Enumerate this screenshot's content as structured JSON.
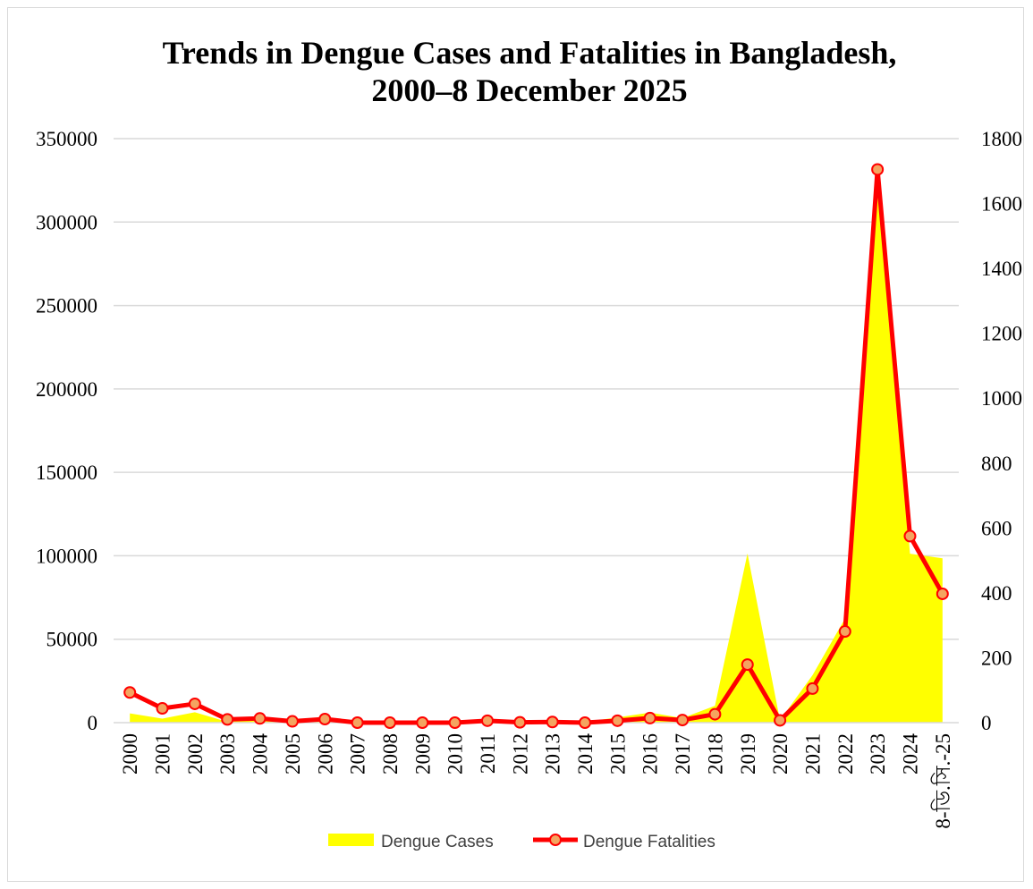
{
  "chart_data": {
    "type": "area",
    "title": [
      "Trends in Dengue Cases and Fatalities in Bangladesh,",
      "2000–8 December 2025"
    ],
    "categories": [
      "2000",
      "2001",
      "2002",
      "2003",
      "2004",
      "2005",
      "2006",
      "2007",
      "2008",
      "2009",
      "2010",
      "2011",
      "2012",
      "2013",
      "2014",
      "2015",
      "2016",
      "2017",
      "2018",
      "2019",
      "2020",
      "2021",
      "2022",
      "2023",
      "2024",
      "8-ডি.সি.-25"
    ],
    "series": [
      {
        "name": "Dengue Cases",
        "type": "area",
        "axis": "left",
        "color": "#ffff00",
        "values": [
          5551,
          2430,
          6232,
          486,
          3434,
          1048,
          2200,
          466,
          1153,
          474,
          409,
          1359,
          671,
          1749,
          375,
          3162,
          6060,
          2769,
          10148,
          101354,
          1405,
          28429,
          62382,
          321179,
          101214,
          98500
        ]
      },
      {
        "name": "Dengue Fatalities",
        "type": "line",
        "axis": "right",
        "color": "#ff0000",
        "marker_fill": "#f4a460",
        "values": [
          93,
          44,
          58,
          10,
          13,
          4,
          11,
          0,
          0,
          0,
          0,
          6,
          1,
          2,
          0,
          6,
          14,
          8,
          26,
          179,
          7,
          105,
          281,
          1705,
          575,
          397
        ]
      }
    ],
    "y_left": {
      "min": 0,
      "max": 350000,
      "step": 50000,
      "ticks": [
        "0",
        "50000",
        "100000",
        "150000",
        "200000",
        "250000",
        "300000",
        "350000"
      ]
    },
    "y_right": {
      "min": 0,
      "max": 1800,
      "step": 200,
      "ticks": [
        "0",
        "200",
        "400",
        "600",
        "800",
        "1000",
        "1200",
        "1400",
        "1600",
        "1800"
      ]
    },
    "grid": true,
    "legend_position": "bottom",
    "gridline_color": "#d9d9d9"
  }
}
